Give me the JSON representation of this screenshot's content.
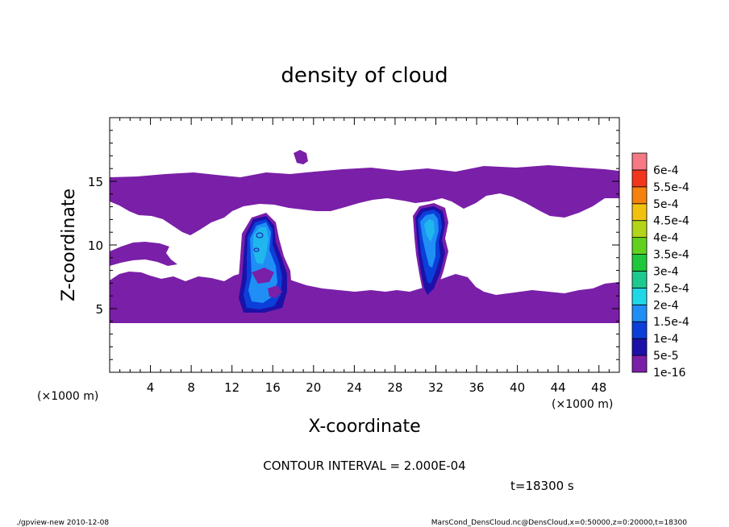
{
  "chart_data": {
    "type": "heatmap",
    "title": "density of cloud",
    "xlabel": "X-coordinate",
    "ylabel": "Z-coordinate",
    "x_unit": "(×1000 m)",
    "y_unit": "(×1000 m)",
    "xlim": [
      0,
      50
    ],
    "ylim": [
      0,
      20
    ],
    "x_ticks": [
      "4",
      "8",
      "12",
      "16",
      "20",
      "24",
      "28",
      "32",
      "36",
      "40",
      "44",
      "48"
    ],
    "y_ticks": [
      "5",
      "10",
      "15"
    ],
    "colorbar": {
      "labels": [
        "1e-16",
        "5e-5",
        "1e-4",
        "1.5e-4",
        "2e-4",
        "2.5e-4",
        "3e-4",
        "3.5e-4",
        "4e-4",
        "4.5e-4",
        "5e-4",
        "5.5e-4",
        "6e-4"
      ],
      "colors": [
        "#7a1fa8",
        "#1d10a8",
        "#0b3fd9",
        "#1f8ff5",
        "#1fd8e6",
        "#1ec98e",
        "#1fc73a",
        "#61d11e",
        "#b3d41a",
        "#f0c20f",
        "#f5820e",
        "#f2361b",
        "#f57a86"
      ]
    },
    "regions": [
      {
        "name": "upper-layer",
        "level": "1e-16",
        "x_range": [
          0,
          50
        ],
        "z_range": [
          12.2,
          15.5
        ]
      },
      {
        "name": "lower-layer",
        "level": "1e-16",
        "x_range": [
          0,
          50
        ],
        "z_range": [
          3.8,
          7.2
        ]
      },
      {
        "name": "left-band",
        "level": "1e-16",
        "x_range": [
          0,
          6.5
        ],
        "z_range": [
          8.5,
          10.2
        ]
      },
      {
        "name": "plume-1",
        "level": "1.5e-4",
        "x_center": 15,
        "z_range": [
          4.2,
          12.3
        ]
      },
      {
        "name": "plume-2",
        "level": "1.5e-4",
        "x_center": 31.5,
        "z_range": [
          5.8,
          12.9
        ]
      }
    ]
  },
  "contour_interval": "CONTOUR INTERVAL = 2.000E-04",
  "time_label": "t=18300 s",
  "footer_left": "./gpview-new   2010-12-08",
  "footer_right": "MarsCond_DensCloud.nc@DensCloud,x=0:50000,z=0:20000,t=18300"
}
